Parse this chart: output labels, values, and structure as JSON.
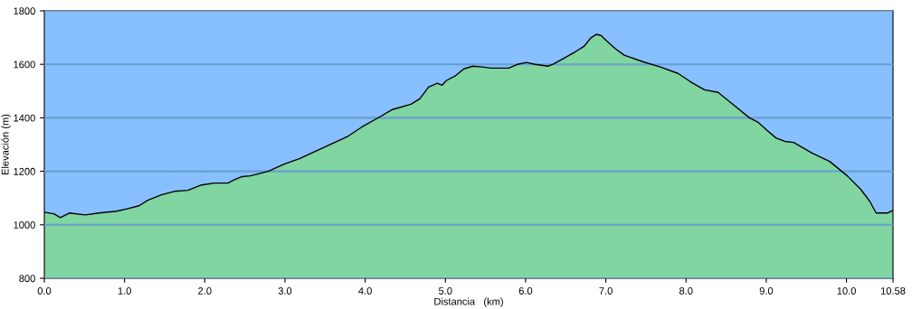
{
  "chart_data": {
    "type": "area",
    "xlabel": "Distancia   (km)",
    "ylabel": "Elevación (m)",
    "xlim": [
      0,
      10.58
    ],
    "ylim": [
      800,
      1800
    ],
    "xticks": [
      {
        "value": 0,
        "label": "0.0"
      },
      {
        "value": 1,
        "label": "1.0"
      },
      {
        "value": 2,
        "label": "2.0"
      },
      {
        "value": 3,
        "label": "3.0"
      },
      {
        "value": 4,
        "label": "4.0"
      },
      {
        "value": 5,
        "label": "5.0"
      },
      {
        "value": 6,
        "label": "6.0"
      },
      {
        "value": 7,
        "label": "7.0"
      },
      {
        "value": 8,
        "label": "8.0"
      },
      {
        "value": 9,
        "label": "9.0"
      },
      {
        "value": 10,
        "label": "10.0"
      },
      10.58
    ],
    "yticks": [
      800,
      1000,
      1200,
      1400,
      1600,
      1800
    ],
    "grid": "y",
    "bands": [
      {
        "axis": "y",
        "from": 800,
        "to": 1800,
        "color": "#88c0ff"
      }
    ],
    "x": [
      0,
      0.12,
      0.2,
      0.31,
      0.51,
      0.68,
      0.9,
      1.01,
      1.18,
      1.29,
      1.46,
      1.62,
      1.79,
      1.96,
      2.12,
      2.29,
      2.37,
      2.46,
      2.57,
      2.79,
      2.99,
      3.18,
      3.4,
      3.62,
      3.79,
      3.96,
      4.18,
      4.34,
      4.57,
      4.68,
      4.79,
      4.9,
      4.96,
      5.01,
      5.12,
      5.23,
      5.34,
      5.46,
      5.57,
      5.79,
      5.9,
      6.01,
      6.12,
      6.28,
      6.34,
      6.46,
      6.62,
      6.73,
      6.81,
      6.88,
      6.94,
      7.01,
      7.12,
      7.23,
      7.46,
      7.68,
      7.9,
      8.07,
      8.23,
      8.4,
      8.57,
      8.79,
      8.9,
      9.01,
      9.12,
      9.23,
      9.34,
      9.57,
      9.79,
      10.01,
      10.18,
      10.29,
      10.37,
      10.51,
      10.58
    ],
    "series": [
      {
        "color": "#80d5a0",
        "values": [
          1047,
          1041,
          1027,
          1044,
          1037,
          1044,
          1051,
          1058,
          1071,
          1092,
          1112,
          1125,
          1129,
          1149,
          1156,
          1156,
          1169,
          1180,
          1183,
          1200,
          1227,
          1247,
          1278,
          1308,
          1332,
          1366,
          1403,
          1431,
          1451,
          1471,
          1515,
          1529,
          1522,
          1539,
          1556,
          1583,
          1593,
          1590,
          1586,
          1586,
          1600,
          1607,
          1600,
          1593,
          1600,
          1620,
          1647,
          1668,
          1698,
          1712,
          1708,
          1688,
          1658,
          1634,
          1610,
          1590,
          1566,
          1532,
          1505,
          1495,
          1454,
          1400,
          1383,
          1353,
          1325,
          1312,
          1308,
          1268,
          1237,
          1183,
          1132,
          1088,
          1044,
          1044,
          1054
        ]
      }
    ]
  }
}
